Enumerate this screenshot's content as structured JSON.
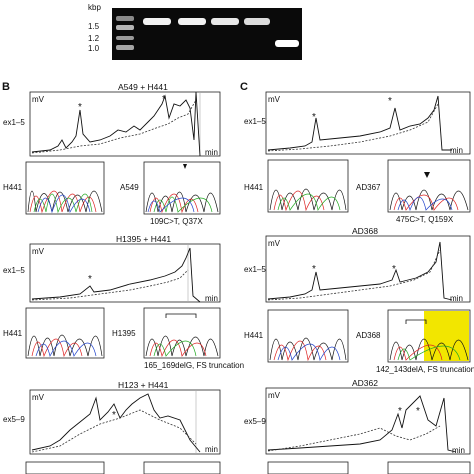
{
  "gel": {
    "unit": "kbp",
    "markers": [
      "1.5",
      "1.2",
      "1.0"
    ]
  },
  "panels": {
    "B": {
      "label": "B",
      "sections": [
        {
          "title": "A549 + H441",
          "exon": "ex1–5",
          "y_unit": "mV",
          "x_unit": "min",
          "star": "*",
          "ref_line": "H441",
          "sample_line": "A549",
          "mutation": "109C>T, Q37X"
        },
        {
          "title": "H1395 + H441",
          "exon": "ex1–5",
          "y_unit": "mV",
          "x_unit": "min",
          "star": "*",
          "ref_line": "H441",
          "sample_line": "H1395",
          "mutation": "165_169delG, FS truncation"
        },
        {
          "title": "H123 + H441",
          "exon": "ex5–9",
          "y_unit": "mV",
          "x_unit": "min",
          "star": "*"
        }
      ]
    },
    "C": {
      "label": "C",
      "sections": [
        {
          "title": "",
          "exon": "ex1–5",
          "y_unit": "mV",
          "x_unit": "min",
          "star": "*",
          "ref_line": "H441",
          "sample_line": "AD367",
          "mutation": "475C>T, Q159X"
        },
        {
          "title": "AD368",
          "exon": "ex1–5",
          "y_unit": "mV",
          "x_unit": "min",
          "star": "*",
          "ref_line": "H441",
          "sample_line": "AD368",
          "mutation": "142_143delA, FS truncation"
        },
        {
          "title": "AD362",
          "exon": "ex5–9",
          "y_unit": "mV",
          "x_unit": "min",
          "star": "*"
        }
      ]
    }
  }
}
